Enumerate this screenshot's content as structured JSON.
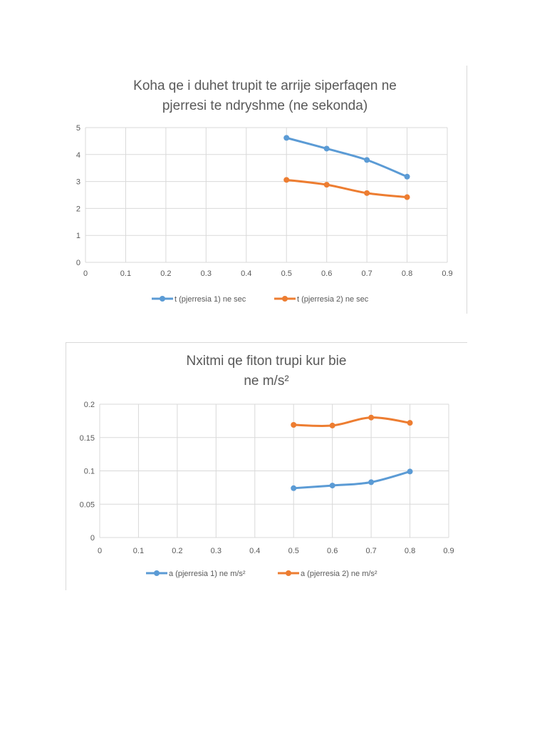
{
  "colors": {
    "series1": "#5b9bd5",
    "series2": "#ed7d31",
    "grid": "#d9d9d9",
    "text": "#595959"
  },
  "chart_data": [
    {
      "type": "line",
      "title": [
        "Koha qe i duhet trupit te arrije siperfaqen  ne",
        "pjerresi te ndryshme  (ne sekonda)"
      ],
      "xlabel": "",
      "ylabel": "",
      "xlim": [
        0,
        0.9
      ],
      "ylim": [
        0,
        5
      ],
      "x_ticks": [
        "0",
        "0.1",
        "0.2",
        "0.3",
        "0.4",
        "0.5",
        "0.6",
        "0.7",
        "0.8",
        "0.9"
      ],
      "y_ticks": [
        "0",
        "1",
        "2",
        "3",
        "4",
        "5"
      ],
      "x": [
        0.5,
        0.6,
        0.7,
        0.8
      ],
      "series": [
        {
          "name": "t (pjerresia 1) ne sec",
          "values": [
            4.62,
            4.22,
            3.8,
            3.18
          ]
        },
        {
          "name": "t (pjerresia 2) ne sec",
          "values": [
            3.06,
            2.88,
            2.57,
            2.42
          ]
        }
      ],
      "legend": "bottom"
    },
    {
      "type": "line",
      "title": [
        "Nxitmi qe fiton trupi kur bie",
        "ne m/s²"
      ],
      "xlabel": "",
      "ylabel": "",
      "xlim": [
        0,
        0.9
      ],
      "ylim": [
        0,
        0.2
      ],
      "x_ticks": [
        "0",
        "0.1",
        "0.2",
        "0.3",
        "0.4",
        "0.5",
        "0.6",
        "0.7",
        "0.8",
        "0.9"
      ],
      "y_ticks": [
        "0",
        "0.05",
        "0.1",
        "0.15",
        "0.2"
      ],
      "x": [
        0.5,
        0.6,
        0.7,
        0.8
      ],
      "series": [
        {
          "name": "a (pjerresia 1) ne m/s²",
          "values": [
            0.074,
            0.078,
            0.083,
            0.099
          ]
        },
        {
          "name": "a (pjerresia 2) ne m/s²",
          "values": [
            0.169,
            0.168,
            0.18,
            0.172
          ]
        }
      ],
      "legend": "bottom"
    }
  ]
}
